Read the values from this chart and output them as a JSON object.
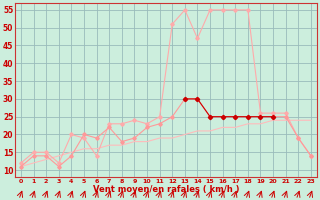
{
  "xlabel": "Vent moyen/en rafales ( km/h )",
  "hours": [
    0,
    1,
    2,
    3,
    4,
    5,
    6,
    7,
    8,
    9,
    10,
    11,
    12,
    13,
    14,
    15,
    16,
    17,
    18,
    19,
    20,
    21,
    22,
    23
  ],
  "wind_avg": [
    11,
    14,
    14,
    11,
    14,
    20,
    19,
    22,
    18,
    19,
    22,
    23,
    25,
    30,
    30,
    25,
    25,
    25,
    25,
    25,
    25,
    25,
    19,
    14
  ],
  "wind_gust": [
    12,
    15,
    15,
    12,
    20,
    19,
    14,
    23,
    23,
    24,
    23,
    25,
    51,
    55,
    47,
    55,
    55,
    55,
    55,
    26,
    26,
    26,
    19,
    14
  ],
  "trend_avg": [
    11,
    12,
    13,
    14,
    15,
    16,
    16,
    17,
    17,
    18,
    18,
    19,
    19,
    20,
    21,
    21,
    22,
    22,
    23,
    23,
    24,
    24,
    24,
    24
  ],
  "ylim_min": 8,
  "ylim_max": 57,
  "yticks": [
    10,
    15,
    20,
    25,
    30,
    35,
    40,
    45,
    50,
    55
  ],
  "bg_color": "#cceedd",
  "grid_color": "#99bbbb",
  "line_color_avg": "#ff9999",
  "line_color_gust": "#ffaaaa",
  "line_color_trend": "#ffbbbb",
  "dot_color": "#cc0000",
  "arrow_color": "#cc0000",
  "highlight_hours": [
    13,
    14,
    15,
    16,
    17,
    18,
    19,
    20
  ],
  "highlight_vals": [
    30,
    30,
    25,
    25,
    25,
    25,
    25,
    25
  ]
}
